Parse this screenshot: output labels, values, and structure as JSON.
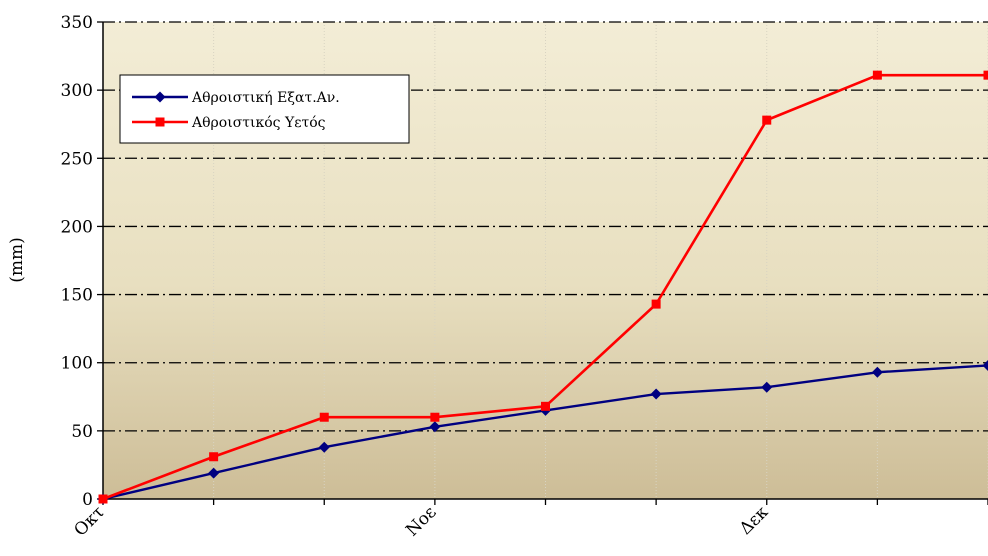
{
  "chart_data": {
    "type": "line",
    "ylabel": "(mm)",
    "xlabel": "",
    "ylim": [
      0,
      350
    ],
    "yticks": [
      0,
      50,
      100,
      150,
      200,
      250,
      300,
      350
    ],
    "x_tick_labels": [
      "Οκτ",
      "Νοε",
      "Δεκ"
    ],
    "grid": "horizontal dash-dot",
    "legend_position": "top-left",
    "background": "gradient light beige to tan",
    "series": [
      {
        "name": "Αθροιστική Εξατ.Αν.",
        "color": "#000080",
        "marker": "diamond",
        "values": [
          0,
          19,
          38,
          53,
          65,
          77,
          82,
          93,
          98
        ]
      },
      {
        "name": "Αθροιστικός Υετός",
        "color": "#FF0000",
        "marker": "square",
        "values": [
          0,
          31,
          60,
          60,
          68,
          143,
          278,
          311,
          311
        ]
      }
    ]
  }
}
